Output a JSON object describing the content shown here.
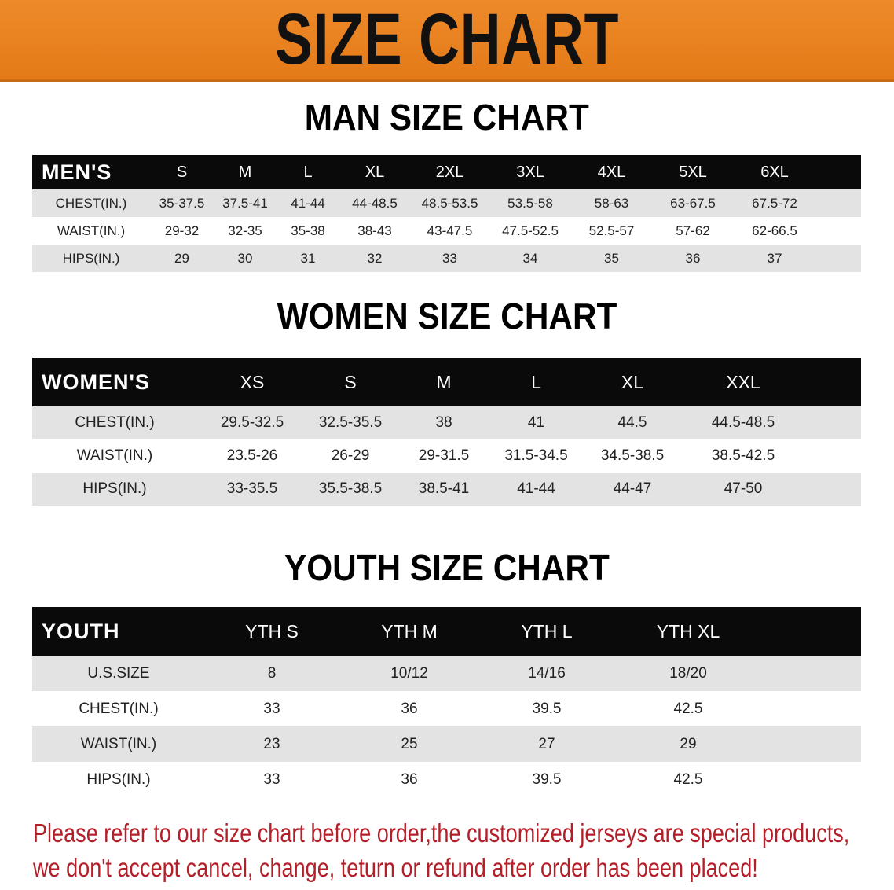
{
  "banner_title": "SIZE CHART",
  "men": {
    "title": "MAN SIZE CHART",
    "header": [
      "MEN'S",
      "S",
      "M",
      "L",
      "XL",
      "2XL",
      "3XL",
      "4XL",
      "5XL",
      "6XL"
    ],
    "rows": [
      [
        "CHEST(IN.)",
        "35-37.5",
        "37.5-41",
        "41-44",
        "44-48.5",
        "48.5-53.5",
        "53.5-58",
        "58-63",
        "63-67.5",
        "67.5-72"
      ],
      [
        "WAIST(IN.)",
        "29-32",
        "32-35",
        "35-38",
        "38-43",
        "43-47.5",
        "47.5-52.5",
        "52.5-57",
        "57-62",
        "62-66.5"
      ],
      [
        "HIPS(IN.)",
        "29",
        "30",
        "31",
        "32",
        "33",
        "34",
        "35",
        "36",
        "37"
      ]
    ]
  },
  "women": {
    "title": "WOMEN SIZE CHART",
    "header": [
      "WOMEN'S",
      "XS",
      "S",
      "M",
      "L",
      "XL",
      "XXL"
    ],
    "rows": [
      [
        "CHEST(IN.)",
        "29.5-32.5",
        "32.5-35.5",
        "38",
        "41",
        "44.5",
        "44.5-48.5"
      ],
      [
        "WAIST(IN.)",
        "23.5-26",
        "26-29",
        "29-31.5",
        "31.5-34.5",
        "34.5-38.5",
        "38.5-42.5"
      ],
      [
        "HIPS(IN.)",
        "33-35.5",
        "35.5-38.5",
        "38.5-41",
        "41-44",
        "44-47",
        "47-50"
      ]
    ]
  },
  "youth": {
    "title": "YOUTH SIZE CHART",
    "header": [
      "YOUTH",
      "YTH S",
      "YTH M",
      "YTH L",
      "YTH XL"
    ],
    "rows": [
      [
        "U.S.SIZE",
        "8",
        "10/12",
        "14/16",
        "18/20"
      ],
      [
        "CHEST(IN.)",
        "33",
        "36",
        "39.5",
        "42.5"
      ],
      [
        "WAIST(IN.)",
        "23",
        "25",
        "27",
        "29"
      ],
      [
        "HIPS(IN.)",
        "33",
        "36",
        "39.5",
        "42.5"
      ]
    ]
  },
  "notice": {
    "line1": "Please refer to our size chart before order,the customized jerseys are special products,",
    "line2": "we don't accept cancel, change, teturn or refund after order has been placed!"
  },
  "colors": {
    "banner": "#e9821f",
    "header_row": "#0a0a0a",
    "stripe": "#e3e3e3",
    "notice": "#b4202a"
  }
}
